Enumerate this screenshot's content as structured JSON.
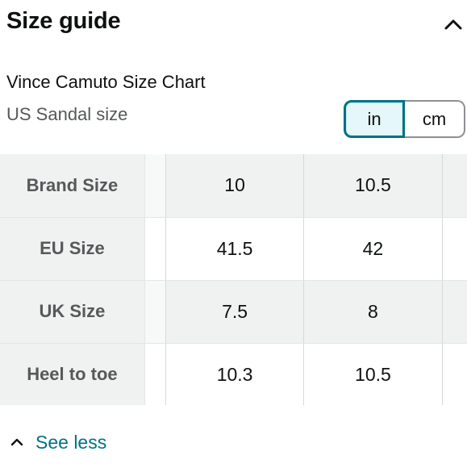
{
  "header": {
    "title": "Size guide",
    "collapse_icon": "chevron-up-icon"
  },
  "chart": {
    "name": "Vince Camuto Size Chart",
    "subtitle": "US Sandal size"
  },
  "unit_toggle": {
    "options": [
      "in",
      "cm"
    ],
    "selected": "in",
    "accent_color": "#007185"
  },
  "size_table": {
    "rows": [
      {
        "label": "Brand Size",
        "values": [
          "10",
          "10.5"
        ]
      },
      {
        "label": "EU Size",
        "values": [
          "41.5",
          "42"
        ]
      },
      {
        "label": "UK Size",
        "values": [
          "7.5",
          "8"
        ]
      },
      {
        "label": "Heel to toe",
        "values": [
          "10.3",
          "10.5"
        ]
      }
    ]
  },
  "footer": {
    "see_less_label": "See less",
    "see_less_icon": "chevron-up-icon",
    "link_color": "#007185"
  }
}
